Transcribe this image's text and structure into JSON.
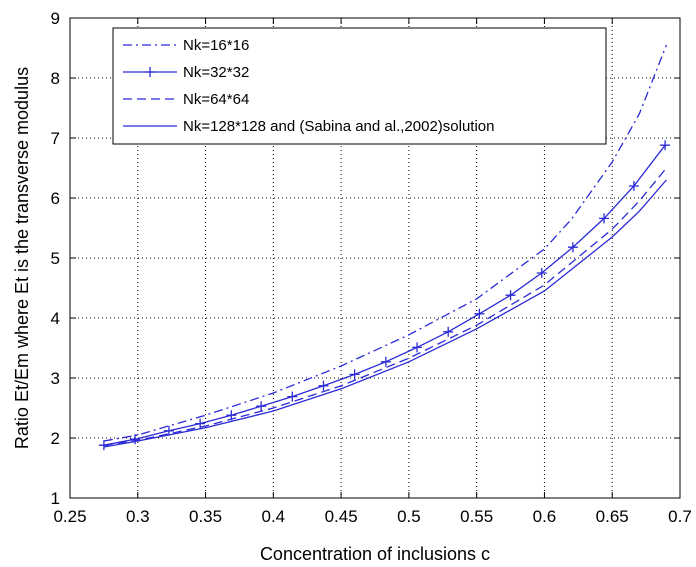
{
  "chart_data": {
    "type": "line",
    "title": "",
    "xlabel": "Concentration of inclusions c",
    "ylabel": "Ratio Et/Em where Et is the transverse modulus",
    "xlim": [
      0.25,
      0.7
    ],
    "ylim": [
      1,
      9
    ],
    "xticks": [
      "0.25",
      "0.3",
      "0.35",
      "0.4",
      "0.45",
      "0.5",
      "0.55",
      "0.6",
      "0.65",
      "0.7"
    ],
    "yticks": [
      "1",
      "2",
      "3",
      "4",
      "5",
      "6",
      "7",
      "8",
      "9"
    ],
    "grid": true,
    "legend_position": "top-left",
    "color": "#2b2bd6",
    "series": [
      {
        "name": "Nk=16*16",
        "linestyle": "dashdot",
        "marker": "none",
        "x": [
          0.275,
          0.3,
          0.35,
          0.4,
          0.45,
          0.5,
          0.55,
          0.6,
          0.62,
          0.65,
          0.67,
          0.69
        ],
        "y": [
          1.95,
          2.05,
          2.38,
          2.75,
          3.2,
          3.72,
          4.32,
          5.15,
          5.65,
          6.6,
          7.4,
          8.55
        ]
      },
      {
        "name": "Nk=32*32",
        "linestyle": "solid",
        "marker": "plus",
        "x": [
          0.275,
          0.298,
          0.323,
          0.346,
          0.369,
          0.391,
          0.414,
          0.437,
          0.46,
          0.483,
          0.506,
          0.529,
          0.552,
          0.575,
          0.598,
          0.621,
          0.644,
          0.666,
          0.689
        ],
        "y": [
          1.88,
          1.98,
          2.12,
          2.24,
          2.38,
          2.53,
          2.69,
          2.87,
          3.06,
          3.27,
          3.51,
          3.77,
          4.07,
          4.38,
          4.75,
          5.18,
          5.66,
          6.2,
          6.88
        ]
      },
      {
        "name": "Nk=64*64",
        "linestyle": "dashed",
        "marker": "none",
        "x": [
          0.275,
          0.3,
          0.35,
          0.4,
          0.45,
          0.5,
          0.55,
          0.6,
          0.65,
          0.67,
          0.69
        ],
        "y": [
          1.88,
          1.96,
          2.2,
          2.5,
          2.87,
          3.33,
          3.88,
          4.55,
          5.48,
          5.95,
          6.5
        ]
      },
      {
        "name": "Nk=128*128 and (Sabina and al.,2002)solution",
        "linestyle": "solid",
        "marker": "none",
        "x": [
          0.275,
          0.3,
          0.35,
          0.4,
          0.45,
          0.5,
          0.55,
          0.6,
          0.65,
          0.67,
          0.69
        ],
        "y": [
          1.85,
          1.95,
          2.17,
          2.45,
          2.82,
          3.27,
          3.82,
          4.45,
          5.35,
          5.78,
          6.3
        ]
      }
    ]
  }
}
